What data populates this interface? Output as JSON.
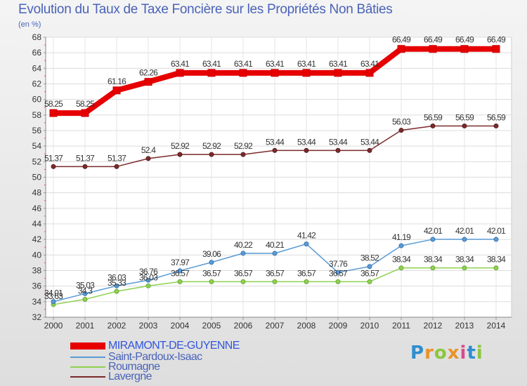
{
  "header": {
    "title": "Evolution du Taux de Taxe Foncière sur les Propriétés Non Bâties",
    "subtitle": "(en %)"
  },
  "brand": {
    "text": "Proxiti",
    "letters": [
      "P",
      "r",
      "o",
      "x",
      "i",
      "t",
      "i"
    ],
    "letter_colors": [
      "#2e8ecf",
      "#e8932a",
      "#8cc63f",
      "#e8932a",
      "#d94a8c",
      "#2e8ecf",
      "#8cc63f"
    ]
  },
  "chart_data": {
    "type": "line",
    "x": [
      2000,
      2001,
      2002,
      2003,
      2004,
      2005,
      2006,
      2007,
      2008,
      2009,
      2010,
      2011,
      2012,
      2013,
      2014
    ],
    "ylim": [
      32,
      68
    ],
    "yticks": [
      32,
      34,
      36,
      38,
      40,
      42,
      44,
      46,
      48,
      50,
      52,
      54,
      56,
      58,
      60,
      62,
      64,
      66,
      68
    ],
    "grid": true,
    "legend_position": "bottom-left",
    "series": [
      {
        "name": "MIRAMONT-DE-GUYENNE",
        "color": "#e60000",
        "values": [
          58.25,
          58.25,
          61.16,
          62.26,
          63.41,
          63.41,
          63.41,
          63.41,
          63.41,
          63.41,
          63.41,
          66.49,
          66.49,
          66.49,
          66.49
        ],
        "labels": [
          "58.25",
          "58.25",
          "61.16",
          "62.26",
          "63.41",
          "63.41",
          "63.41",
          "63.41",
          "63.41",
          "63.41",
          "63.41",
          "66.49",
          "66.49",
          "66.49",
          "66.49"
        ]
      },
      {
        "name": "Saint-Pardoux-Isaac",
        "color": "#5b9bd5",
        "values": [
          34.01,
          35.03,
          36.03,
          36.76,
          37.97,
          39.06,
          40.22,
          40.21,
          41.42,
          37.76,
          38.52,
          41.19,
          42.01,
          42.01,
          42.01
        ],
        "labels": [
          "34.01",
          "35.03",
          "36.03",
          "36.76",
          "37.97",
          "39.06",
          "40.22",
          "40.21",
          "41.42",
          "37.76",
          "38.52",
          "41.19",
          "42.01",
          "42.01",
          "42.01"
        ]
      },
      {
        "name": "Roumagne",
        "color": "#8fd14f",
        "values": [
          33.63,
          34.3,
          35.33,
          36.03,
          36.57,
          36.57,
          36.57,
          36.57,
          36.57,
          36.57,
          36.57,
          38.34,
          38.34,
          38.34,
          38.34
        ],
        "labels": [
          "33.63",
          "34.3",
          "35.33",
          "36.03",
          "36.57",
          "36.57",
          "36.57",
          "36.57",
          "36.57",
          "36.57",
          "36.57",
          "38.34",
          "38.34",
          "38.34",
          "38.34"
        ]
      },
      {
        "name": "Lavergne",
        "color": "#7b2a2a",
        "values": [
          51.37,
          51.37,
          51.37,
          52.4,
          52.92,
          52.92,
          52.92,
          53.44,
          53.44,
          53.44,
          53.44,
          56.03,
          56.59,
          56.59,
          56.59
        ],
        "labels": [
          "51.37",
          "51.37",
          "51.37",
          "52.4",
          "52.92",
          "52.92",
          "52.92",
          "53.44",
          "53.44",
          "53.44",
          "53.44",
          "56.03",
          "56.59",
          "56.59",
          "56.59"
        ]
      }
    ]
  }
}
